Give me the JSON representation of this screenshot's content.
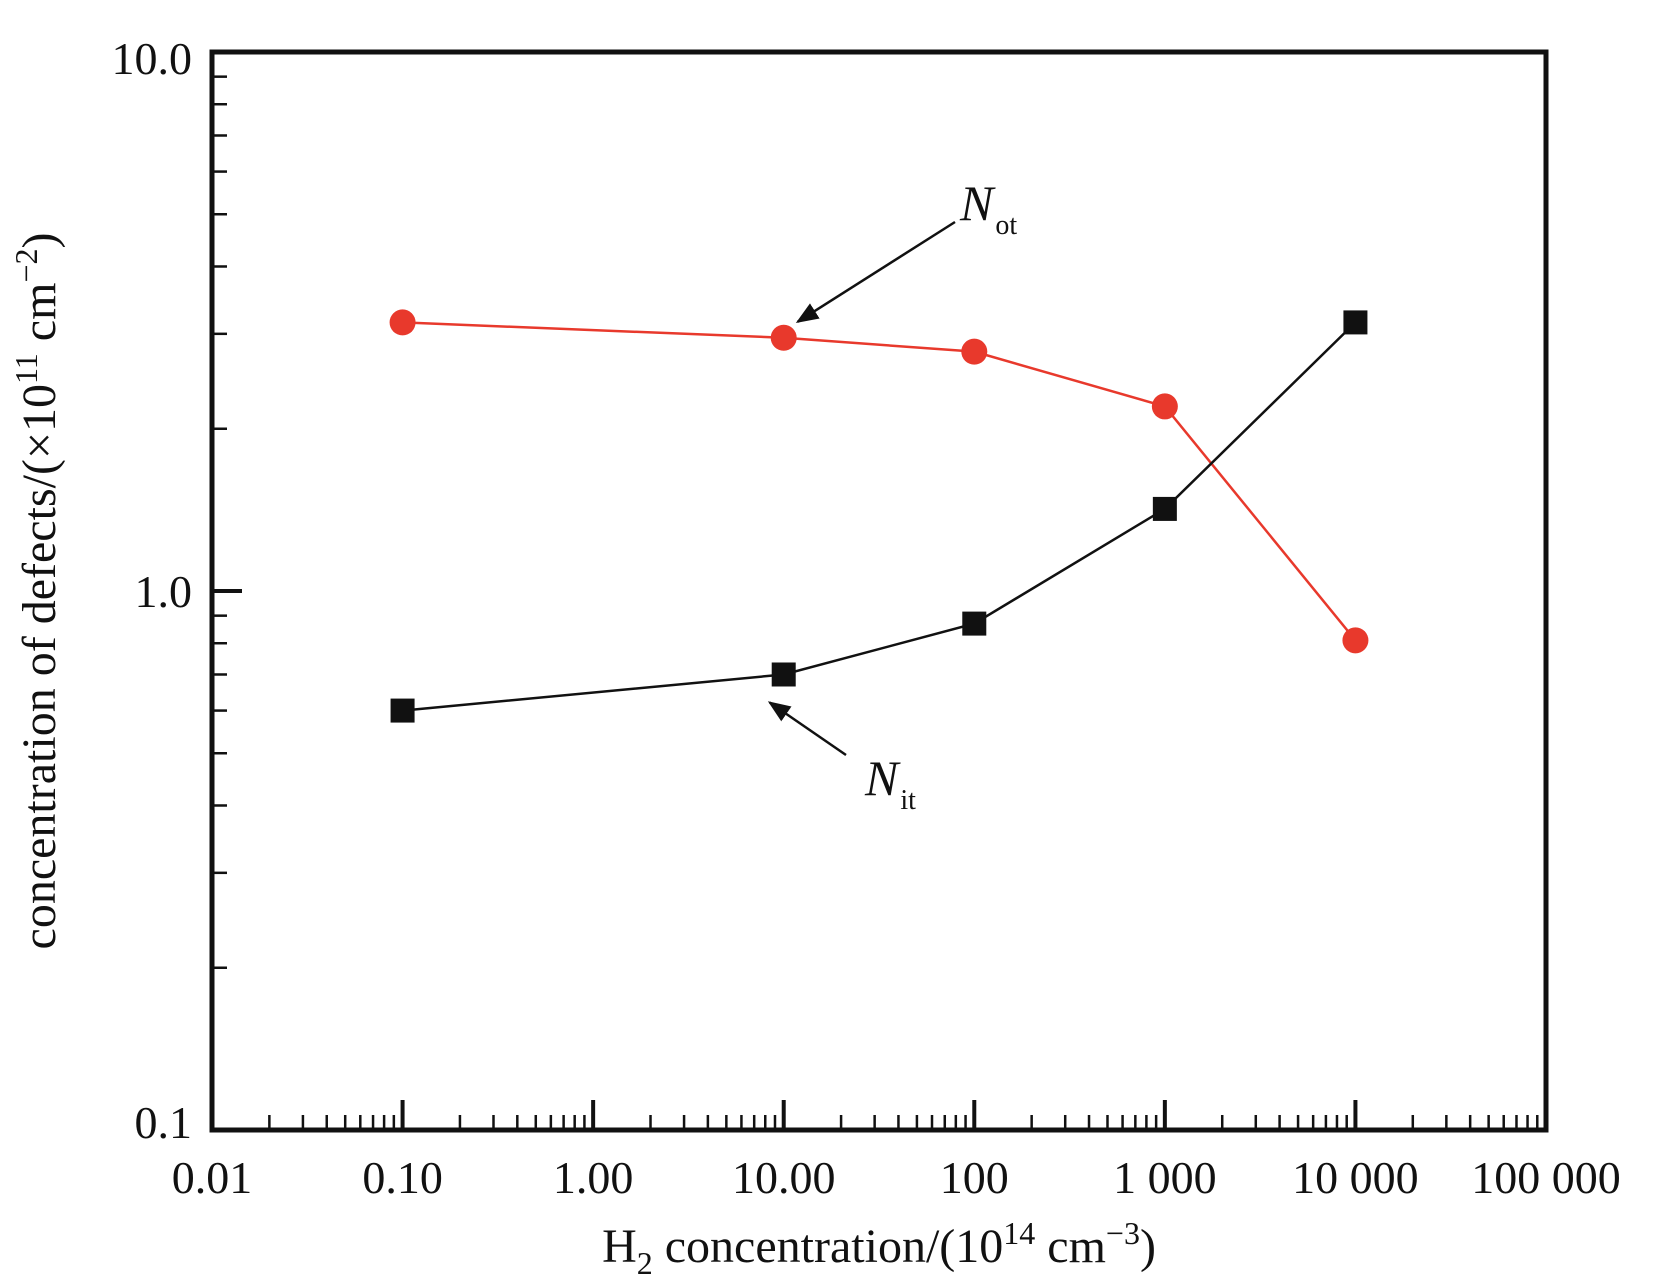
{
  "chart_data": {
    "type": "line",
    "title": "",
    "xlabel": {
      "prefix": "H",
      "sub": "2",
      "middle": " concentration/(10",
      "sup": "14",
      "unit": " cm",
      "unit_sup": "−3",
      "suffix": ")"
    },
    "ylabel": {
      "prefix": "concentration of defects/(×10",
      "sup": "11",
      "unit": " cm",
      "unit_sup": "−2",
      "suffix": ")"
    },
    "xscale": "log",
    "yscale": "log",
    "xlim": [
      0.01,
      100000
    ],
    "ylim": [
      0.1,
      10.0
    ],
    "x_tick_labels": [
      "0.01",
      "0.10",
      "1.00",
      "10.00",
      "100",
      "1 000",
      "10 000",
      "100 000"
    ],
    "y_tick_labels": [
      "0.1",
      "1.0",
      "10.0"
    ],
    "grid": false,
    "legend": "none",
    "series": [
      {
        "color": "#e8392c",
        "marker": "circle",
        "x": [
          0.1,
          10,
          100,
          1000,
          10000
        ],
        "y": [
          3.15,
          2.95,
          2.78,
          2.2,
          0.81
        ]
      },
      {
        "color": "#111111",
        "marker": "square",
        "x": [
          0.1,
          10,
          100,
          1000,
          10000
        ],
        "y": [
          0.6,
          0.7,
          0.87,
          1.42,
          3.15
        ]
      }
    ],
    "annotations": [
      {
        "main": "N",
        "sub": "ot",
        "points_to_series": 0,
        "points_to_index": 1
      },
      {
        "main": "N",
        "sub": "it",
        "points_to_series": 1,
        "points_to_index": 1
      }
    ]
  }
}
